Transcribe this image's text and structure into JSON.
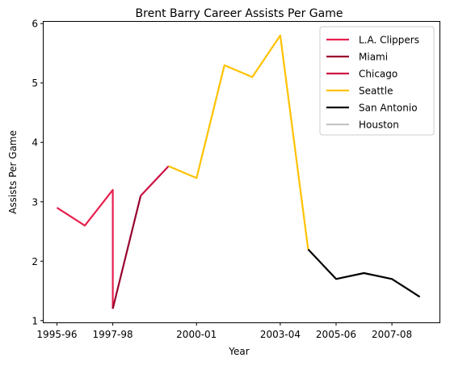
{
  "chart_data": {
    "type": "line",
    "title": "Brent Barry Career Assists Per Game",
    "xlabel": "Year",
    "ylabel": "Assists Per Game",
    "x_tick_labels": [
      "1995-96",
      "1997-98",
      "2000-01",
      "2003-04",
      "2005-06",
      "2007-08"
    ],
    "y_ticks": [
      1,
      2,
      3,
      4,
      5,
      6
    ],
    "ylim": [
      0.97,
      6.03
    ],
    "grid": false,
    "legend_position": "top-right",
    "series": [
      {
        "name": "L.A. Clippers",
        "color": "#e8204e",
        "points": [
          {
            "x": "1995-96",
            "y": 2.9
          },
          {
            "x": "1996-97",
            "y": 2.6
          },
          {
            "x": "1997-98",
            "y": 3.2
          },
          {
            "x": "1997-98",
            "y": 1.2
          }
        ]
      },
      {
        "name": "Miami",
        "color": "#98002e",
        "points": [
          {
            "x": "1997-98",
            "y": 1.2
          },
          {
            "x": "1998-99",
            "y": 3.1
          }
        ]
      },
      {
        "name": "Chicago",
        "color": "#ce1141",
        "points": [
          {
            "x": "1998-99",
            "y": 3.1
          },
          {
            "x": "1999-00",
            "y": 3.6
          }
        ]
      },
      {
        "name": "Seattle",
        "color": "#ffc200",
        "points": [
          {
            "x": "1999-00",
            "y": 3.6
          },
          {
            "x": "2000-01",
            "y": 3.4
          },
          {
            "x": "2001-02",
            "y": 5.3
          },
          {
            "x": "2002-03",
            "y": 5.1
          },
          {
            "x": "2003-04",
            "y": 5.8
          },
          {
            "x": "2004-05",
            "y": 2.2
          }
        ]
      },
      {
        "name": "San Antonio",
        "color": "#000000",
        "points": [
          {
            "x": "2004-05",
            "y": 2.2
          },
          {
            "x": "2005-06",
            "y": 1.7
          },
          {
            "x": "2006-07",
            "y": 1.8
          },
          {
            "x": "2007-08",
            "y": 1.7
          },
          {
            "x": "2008-09",
            "y": 1.4
          }
        ]
      },
      {
        "name": "Houston",
        "color": "#c4c4c4",
        "points": []
      }
    ]
  }
}
